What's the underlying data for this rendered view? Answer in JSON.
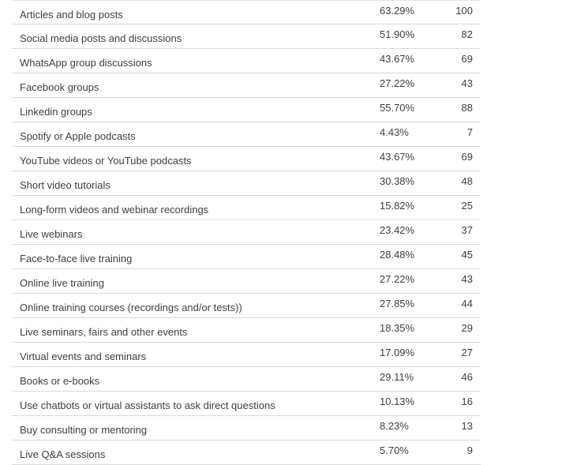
{
  "table": {
    "rows": [
      {
        "label": "Articles and blog posts",
        "percent": "63.29%",
        "count": "100"
      },
      {
        "label": "Social media posts and discussions",
        "percent": "51.90%",
        "count": "82"
      },
      {
        "label": "WhatsApp group discussions",
        "percent": "43.67%",
        "count": "69"
      },
      {
        "label": "Facebook groups",
        "percent": "27.22%",
        "count": "43"
      },
      {
        "label": "Linkedin groups",
        "percent": "55.70%",
        "count": "88"
      },
      {
        "label": "Spotify or Apple podcasts",
        "percent": "4.43%",
        "count": "7"
      },
      {
        "label": "YouTube videos or YouTube podcasts",
        "percent": "43.67%",
        "count": "69"
      },
      {
        "label": "Short video tutorials",
        "percent": "30.38%",
        "count": "48"
      },
      {
        "label": "Long-form videos and webinar recordings",
        "percent": "15.82%",
        "count": "25"
      },
      {
        "label": "Live webinars",
        "percent": "23.42%",
        "count": "37"
      },
      {
        "label": "Face-to-face live training",
        "percent": "28.48%",
        "count": "45"
      },
      {
        "label": "Online live training",
        "percent": "27.22%",
        "count": "43"
      },
      {
        "label": "Online training courses (recordings and/or tests))",
        "percent": "27.85%",
        "count": "44"
      },
      {
        "label": "Live seminars, fairs and other events",
        "percent": "18.35%",
        "count": "29"
      },
      {
        "label": "Virtual events and seminars",
        "percent": "17.09%",
        "count": "27"
      },
      {
        "label": "Books or e-books",
        "percent": "29.11%",
        "count": "46"
      },
      {
        "label": "Use chatbots or virtual assistants to ask direct questions",
        "percent": "10.13%",
        "count": "16"
      },
      {
        "label": "Buy consulting or mentoring",
        "percent": "8.23%",
        "count": "13"
      },
      {
        "label": "Live Q&A sessions",
        "percent": "5.70%",
        "count": "9"
      }
    ]
  }
}
